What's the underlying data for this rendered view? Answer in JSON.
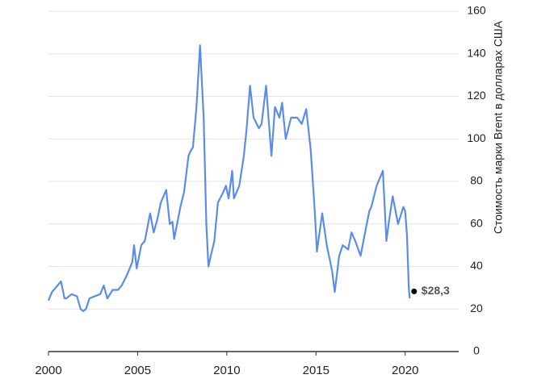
{
  "chart_data": {
    "type": "line",
    "y_label": "Стоимость марки Brent в долларах США",
    "x": [
      2000.0,
      2000.2,
      2000.4,
      2000.7,
      2000.9,
      2001.0,
      2001.3,
      2001.6,
      2001.8,
      2001.95,
      2002.1,
      2002.3,
      2002.6,
      2002.9,
      2003.1,
      2003.3,
      2003.6,
      2003.9,
      2004.1,
      2004.4,
      2004.7,
      2004.8,
      2004.95,
      2005.2,
      2005.4,
      2005.7,
      2005.9,
      2006.1,
      2006.3,
      2006.6,
      2006.8,
      2006.95,
      2007.05,
      2007.4,
      2007.6,
      2007.85,
      2007.95,
      2008.1,
      2008.3,
      2008.5,
      2008.7,
      2008.85,
      2008.97,
      2009.1,
      2009.3,
      2009.5,
      2009.8,
      2009.95,
      2010.1,
      2010.3,
      2010.4,
      2010.7,
      2010.95,
      2011.1,
      2011.3,
      2011.5,
      2011.8,
      2011.95,
      2012.2,
      2012.5,
      2012.7,
      2012.95,
      2013.1,
      2013.3,
      2013.6,
      2013.95,
      2014.2,
      2014.45,
      2014.7,
      2014.9,
      2014.99,
      2015.05,
      2015.35,
      2015.6,
      2015.9,
      2016.05,
      2016.3,
      2016.5,
      2016.8,
      2016.99,
      2017.2,
      2017.5,
      2017.8,
      2017.99,
      2018.1,
      2018.4,
      2018.75,
      2018.95,
      2019.1,
      2019.3,
      2019.6,
      2019.9,
      2020.0,
      2020.1,
      2020.2,
      2020.25
    ],
    "series": [
      {
        "color": "#5b8de8",
        "values": [
          24,
          28,
          30,
          33,
          25,
          25,
          27,
          26,
          20,
          19,
          20,
          25,
          26,
          27,
          31,
          25,
          29,
          29,
          31,
          36,
          42,
          50,
          39,
          50,
          52,
          65,
          56,
          62,
          70,
          76,
          60,
          61,
          53,
          68,
          75,
          92,
          94,
          96,
          115,
          144,
          110,
          60,
          40,
          45,
          52,
          70,
          75,
          78,
          72,
          85,
          72,
          78,
          92,
          104,
          125,
          110,
          105,
          107,
          125,
          92,
          115,
          110,
          117,
          100,
          110,
          110,
          107,
          114,
          95,
          70,
          57,
          47,
          65,
          50,
          38,
          28,
          45,
          50,
          48,
          56,
          52,
          45,
          58,
          66,
          68,
          78,
          85,
          52,
          62,
          73,
          60,
          68,
          66,
          55,
          30,
          25
        ]
      }
    ],
    "annotation": {
      "x": 2020.5,
      "value": 28.3,
      "label": "$28,3"
    },
    "xlim": [
      2000,
      2023
    ],
    "xticks": [
      2000,
      2005,
      2010,
      2015,
      2020
    ],
    "ylim": [
      0,
      160
    ],
    "yticks": [
      0,
      20,
      40,
      60,
      80,
      100,
      120,
      140,
      160
    ],
    "grid": true
  }
}
